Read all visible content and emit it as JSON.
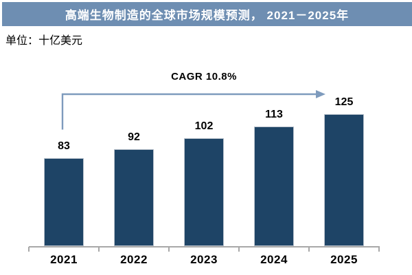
{
  "header": {
    "title": "高端生物制造的全球市场规模预测， 2021－2025年",
    "unit_label": "单位：十亿美元"
  },
  "annotation": {
    "cagr_label": "CAGR 10.8%"
  },
  "chart_data": {
    "type": "bar",
    "title": "高端生物制造的全球市场规模预测，2021－2025年",
    "unit": "十亿美元",
    "categories": [
      "2021",
      "2022",
      "2023",
      "2024",
      "2025"
    ],
    "values": [
      83,
      92,
      102,
      113,
      125
    ],
    "value_labels_shown": true,
    "annotations": [
      "CAGR 10.8%"
    ],
    "xlabel": "",
    "ylabel": "十亿美元",
    "y_axis_shown": false,
    "grid": false,
    "legend": false
  },
  "colors": {
    "banner_bg": "#6E8EB2",
    "banner_text": "#FFFFFF",
    "bar_fill": "#1E4466",
    "bar_border": "#B9C2CC",
    "arrow": "#7E9BBD",
    "axis": "#A8A8A8",
    "text": "#000000"
  }
}
